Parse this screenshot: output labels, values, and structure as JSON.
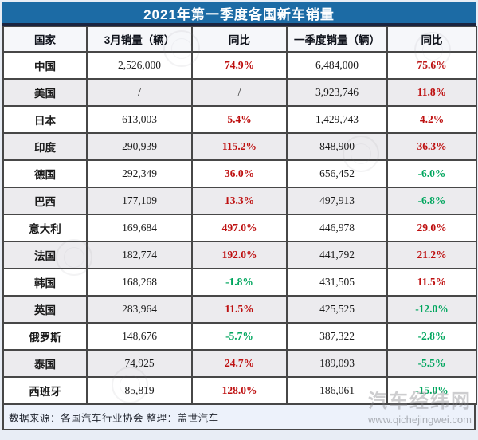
{
  "title": "2021年第一季度各国新车销量",
  "chart_data": {
    "type": "table",
    "title": "2021年第一季度各国新车销量",
    "headers": [
      "国家",
      "3月销量（辆）",
      "同比",
      "一季度销量（辆）",
      "同比"
    ],
    "rows": [
      {
        "country": "中国",
        "march_sales": "2,526,000",
        "march_yoy": "74.9%",
        "march_yoy_trend": "up",
        "q1_sales": "6,484,000",
        "q1_yoy": "75.6%",
        "q1_yoy_trend": "up"
      },
      {
        "country": "美国",
        "march_sales": "/",
        "march_yoy": "/",
        "march_yoy_trend": "plain",
        "q1_sales": "3,923,746",
        "q1_yoy": "11.8%",
        "q1_yoy_trend": "up"
      },
      {
        "country": "日本",
        "march_sales": "613,003",
        "march_yoy": "5.4%",
        "march_yoy_trend": "up",
        "q1_sales": "1,429,743",
        "q1_yoy": "4.2%",
        "q1_yoy_trend": "up"
      },
      {
        "country": "印度",
        "march_sales": "290,939",
        "march_yoy": "115.2%",
        "march_yoy_trend": "up",
        "q1_sales": "848,900",
        "q1_yoy": "36.3%",
        "q1_yoy_trend": "up"
      },
      {
        "country": "德国",
        "march_sales": "292,349",
        "march_yoy": "36.0%",
        "march_yoy_trend": "up",
        "q1_sales": "656,452",
        "q1_yoy": "-6.0%",
        "q1_yoy_trend": "down"
      },
      {
        "country": "巴西",
        "march_sales": "177,109",
        "march_yoy": "13.3%",
        "march_yoy_trend": "up",
        "q1_sales": "497,913",
        "q1_yoy": "-6.8%",
        "q1_yoy_trend": "down"
      },
      {
        "country": "意大利",
        "march_sales": "169,684",
        "march_yoy": "497.0%",
        "march_yoy_trend": "up",
        "q1_sales": "446,978",
        "q1_yoy": "29.0%",
        "q1_yoy_trend": "up"
      },
      {
        "country": "法国",
        "march_sales": "182,774",
        "march_yoy": "192.0%",
        "march_yoy_trend": "up",
        "q1_sales": "441,792",
        "q1_yoy": "21.2%",
        "q1_yoy_trend": "up"
      },
      {
        "country": "韩国",
        "march_sales": "168,268",
        "march_yoy": "-1.8%",
        "march_yoy_trend": "down",
        "q1_sales": "431,505",
        "q1_yoy": "11.5%",
        "q1_yoy_trend": "up"
      },
      {
        "country": "英国",
        "march_sales": "283,964",
        "march_yoy": "11.5%",
        "march_yoy_trend": "up",
        "q1_sales": "425,525",
        "q1_yoy": "-12.0%",
        "q1_yoy_trend": "down"
      },
      {
        "country": "俄罗斯",
        "march_sales": "148,676",
        "march_yoy": "-5.7%",
        "march_yoy_trend": "down",
        "q1_sales": "387,322",
        "q1_yoy": "-2.8%",
        "q1_yoy_trend": "down"
      },
      {
        "country": "泰国",
        "march_sales": "74,925",
        "march_yoy": "24.7%",
        "march_yoy_trend": "up",
        "q1_sales": "189,093",
        "q1_yoy": "-5.5%",
        "q1_yoy_trend": "down"
      },
      {
        "country": "西班牙",
        "march_sales": "85,819",
        "march_yoy": "128.0%",
        "march_yoy_trend": "up",
        "q1_sales": "186,061",
        "q1_yoy": "-15.0%",
        "q1_yoy_trend": "down"
      }
    ]
  },
  "footer": {
    "text": "数据来源：各国汽车行业协会 整理：盖世汽车"
  },
  "watermark": {
    "site_name": "汽车经纬网",
    "site_url": "www.qichejingwei.com"
  },
  "colors": {
    "title_bar_blue": "#1C6BA5",
    "positive_red": "#BE1010",
    "negative_green": "#00A65E",
    "border_dark": "#474747",
    "row_alt_gray": "#ECEBEE",
    "footer_bg": "#EDF2FB"
  }
}
